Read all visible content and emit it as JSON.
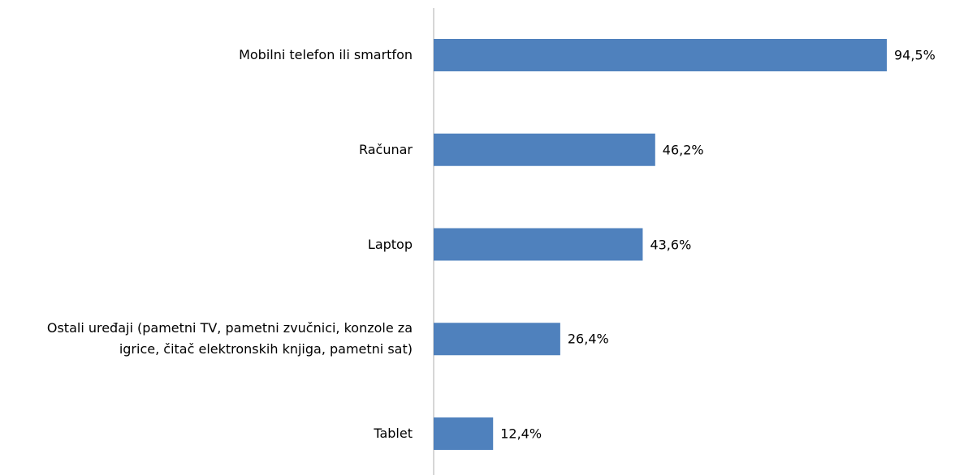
{
  "chart_data": {
    "type": "bar",
    "orientation": "horizontal",
    "categories": [
      "Mobilni telefon ili smartfon",
      "Računar",
      "Laptop",
      "Ostali uređaji (pametni TV, pametni zvučnici, konzole za igrice, čitač elektronskih knjiga, pametni sat)",
      "Tablet"
    ],
    "values": [
      94.5,
      46.2,
      43.6,
      26.4,
      12.4
    ],
    "value_labels": [
      "94,5%",
      "46,2%",
      "43,6%",
      "26,4%",
      "12,4%"
    ],
    "color": "#4f81bd"
  }
}
